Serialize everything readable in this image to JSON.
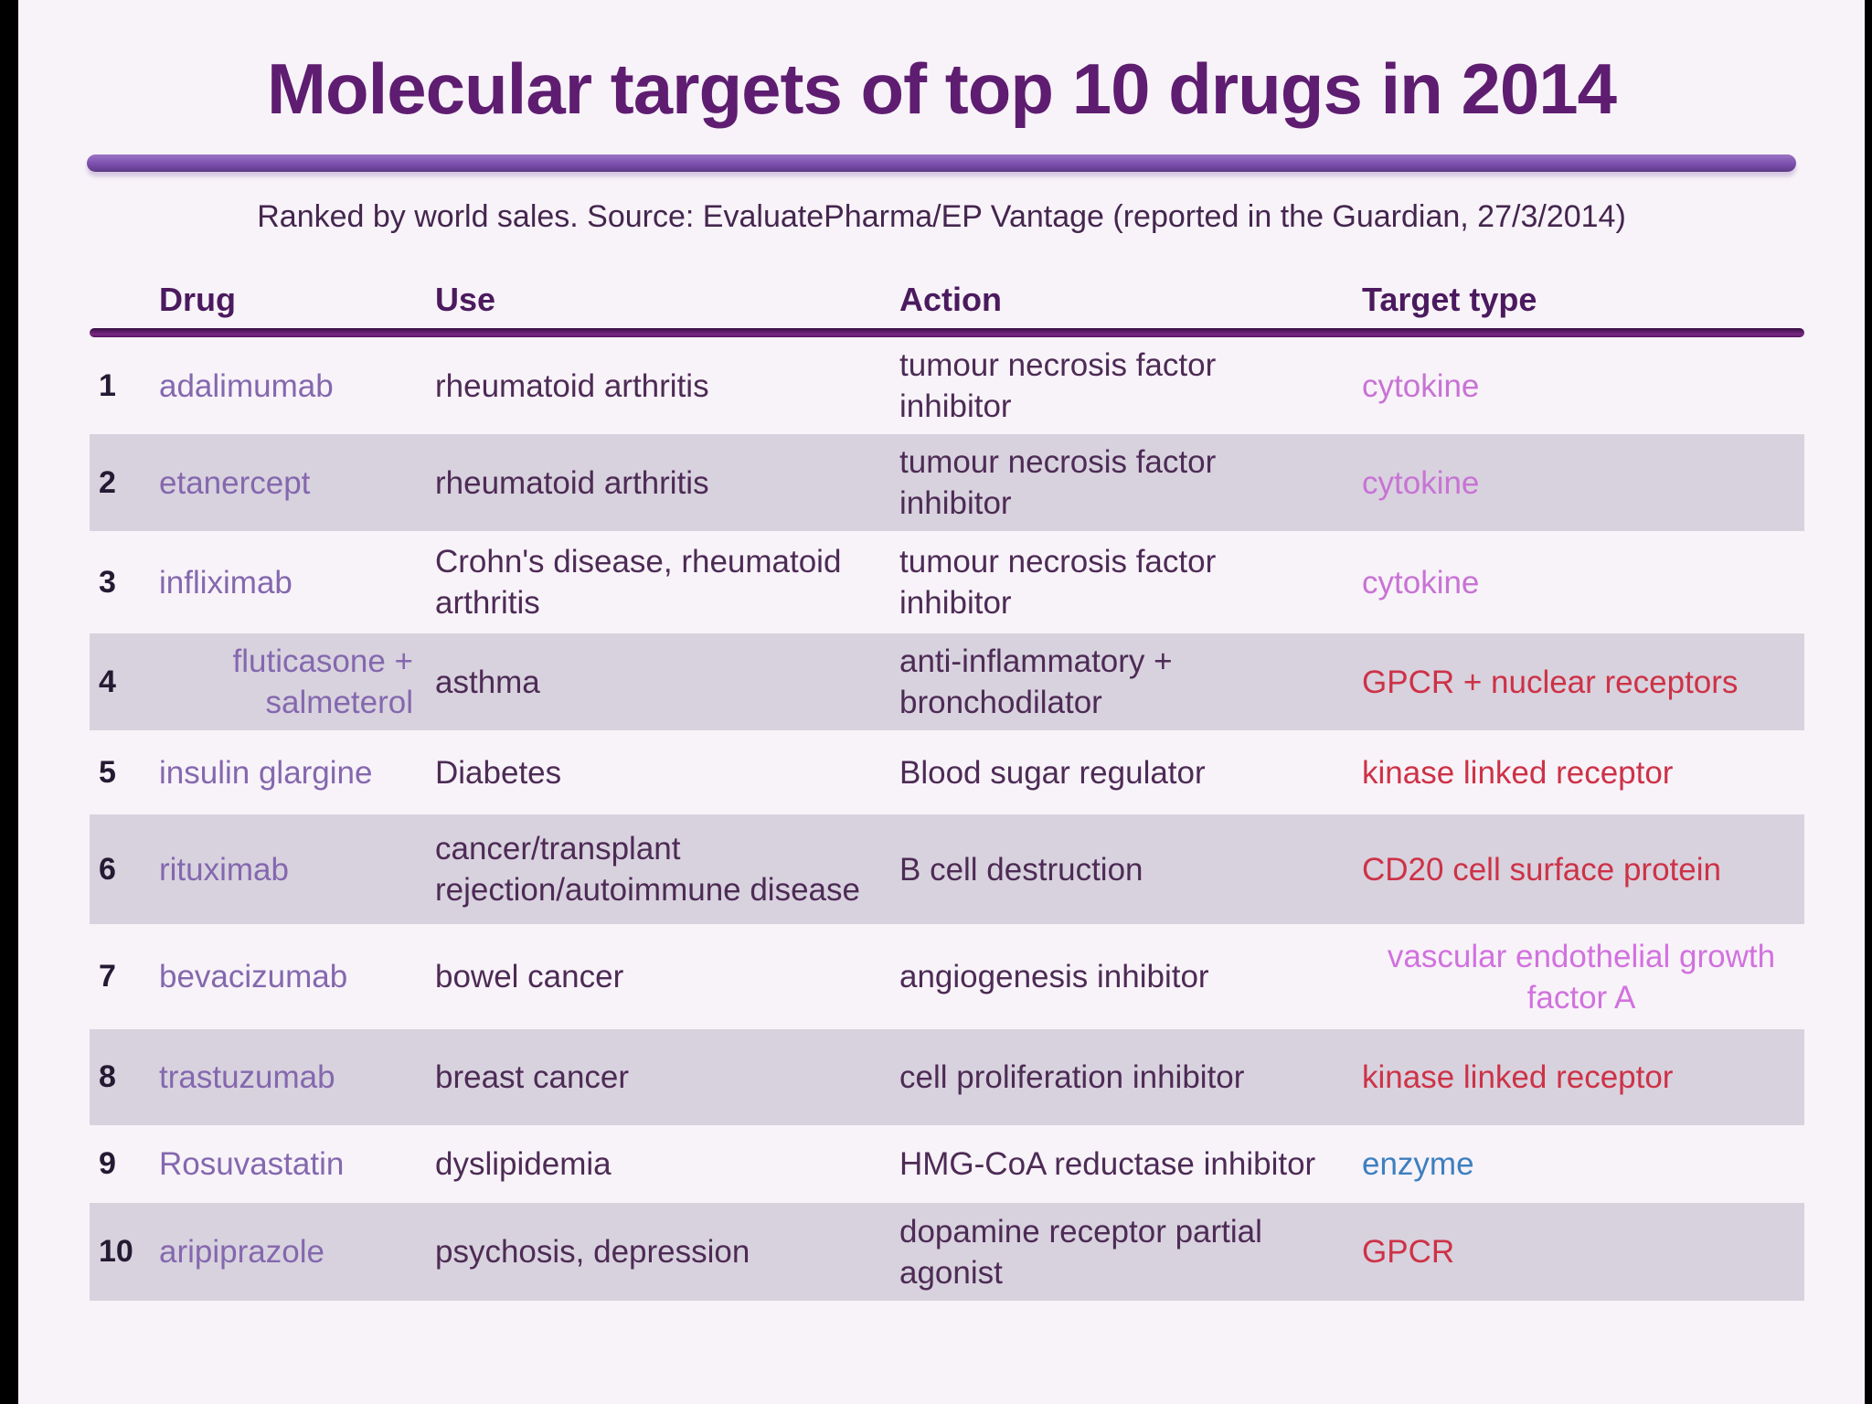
{
  "slide": {
    "title": "Molecular targets of top 10 drugs in 2014",
    "subtitle": "Ranked by world sales. Source: EvaluatePharma/EP Vantage (reported in the Guardian, 27/3/2014)"
  },
  "colors": {
    "slide_background": "#f8f3f9",
    "letterbox": "#000000",
    "row_stripe": "#d8d2de",
    "title_text": "#5e1d70",
    "title_bar": "#7b4fae",
    "header_text": "#4b1a5e",
    "header_rule": "#50135c",
    "rank_text": "#241a33",
    "drug_text": "#8468ae",
    "body_text": "#4d2b55",
    "target_orchid": "#c873d4",
    "target_red": "#cd3247",
    "target_magenta": "#d172de",
    "target_blue": "#3d7fc0"
  },
  "table": {
    "columns": [
      "Drug",
      "Use",
      "Action",
      "Target type"
    ],
    "rows": [
      {
        "rank": "1",
        "drug": "adalimumab",
        "use": "rheumatoid arthritis",
        "action": "tumour necrosis factor\ninhibitor",
        "target": "cytokine",
        "target_color": "#c873d4"
      },
      {
        "rank": "2",
        "drug": "etanercept",
        "use": "rheumatoid arthritis",
        "action": "tumour necrosis factor\ninhibitor",
        "target": "cytokine",
        "target_color": "#c873d4"
      },
      {
        "rank": "3",
        "drug": "infliximab",
        "use": "Crohn's disease, rheumatoid\narthritis",
        "action": "tumour necrosis factor\ninhibitor",
        "target": "cytokine",
        "target_color": "#c873d4"
      },
      {
        "rank": "4",
        "drug": "fluticasone +\nsalmeterol",
        "use": "asthma",
        "action": "anti-inflammatory +\nbronchodilator",
        "target": "GPCR + nuclear receptors",
        "target_color": "#cd3247"
      },
      {
        "rank": "5",
        "drug": "insulin glargine",
        "use": "Diabetes",
        "action": "Blood sugar regulator",
        "target": "kinase linked receptor",
        "target_color": "#cd3247"
      },
      {
        "rank": "6",
        "drug": "rituximab",
        "use": "cancer/transplant\nrejection/autoimmune disease",
        "action": "B cell destruction",
        "target": "CD20 cell surface protein",
        "target_color": "#cd3247"
      },
      {
        "rank": "7",
        "drug": "bevacizumab",
        "use": "bowel cancer",
        "action": "angiogenesis inhibitor",
        "target": "vascular endothelial growth\nfactor A",
        "target_color": "#d172de"
      },
      {
        "rank": "8",
        "drug": "trastuzumab",
        "use": "breast cancer",
        "action": "cell proliferation inhibitor",
        "target": "kinase linked receptor",
        "target_color": "#cd3247"
      },
      {
        "rank": "9",
        "drug": "Rosuvastatin",
        "use": "dyslipidemia",
        "action": "HMG-CoA reductase inhibitor",
        "target": "enzyme",
        "target_color": "#3d7fc0"
      },
      {
        "rank": "10",
        "drug": "aripiprazole",
        "use": "psychosis, depression",
        "action": "dopamine receptor partial\nagonist",
        "target": "GPCR",
        "target_color": "#cd3247"
      }
    ]
  }
}
